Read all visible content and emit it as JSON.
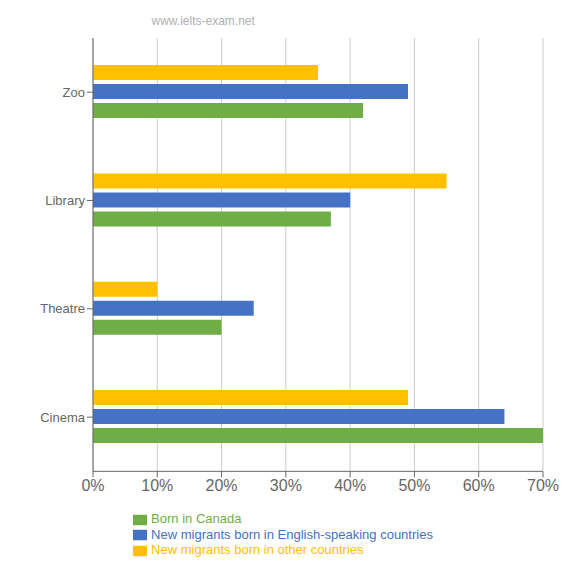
{
  "chart_data": {
    "type": "bar",
    "orientation": "horizontal",
    "categories": [
      "Cinema",
      "Theatre",
      "Library",
      "Zoo"
    ],
    "series": [
      {
        "name": "New migrants born in other countries",
        "color": "#FFC000",
        "values": [
          49,
          10,
          55,
          35
        ]
      },
      {
        "name": "New migrants born in English-speaking countries",
        "color": "#4472C4",
        "values": [
          64,
          25,
          40,
          49
        ]
      },
      {
        "name": "Born in Canada",
        "color": "#70AD47",
        "values": [
          70,
          20,
          37,
          42
        ]
      }
    ],
    "xlim": [
      0,
      70
    ],
    "xticks": [
      {
        "value": 0,
        "label": "0%"
      },
      {
        "value": 10,
        "label": "10%"
      },
      {
        "value": 20,
        "label": "20%"
      },
      {
        "value": 30,
        "label": "30%"
      },
      {
        "value": 40,
        "label": "40%"
      },
      {
        "value": 50,
        "label": "50%"
      },
      {
        "value": 60,
        "label": "60%"
      },
      {
        "value": 70,
        "label": "70%"
      }
    ],
    "grid": "x",
    "legend": "bottom",
    "annotations": [
      {
        "text": "www.ielts-exam.net"
      }
    ]
  }
}
